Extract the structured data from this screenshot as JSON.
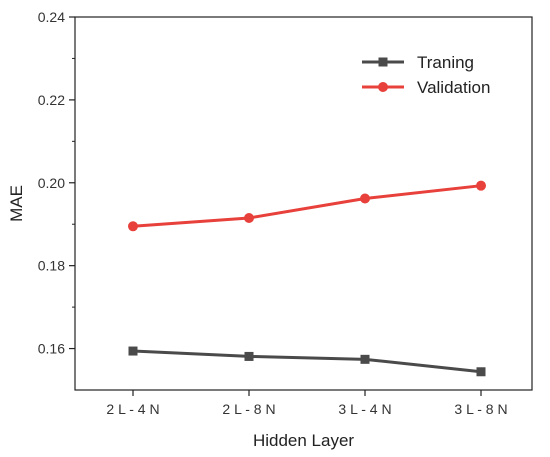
{
  "chart_data": {
    "type": "line",
    "categories": [
      "2 L - 4 N",
      "2 L - 8 N",
      "3 L - 4 N",
      "3 L - 8 N"
    ],
    "series": [
      {
        "name": "Traning",
        "values": [
          0.1594,
          0.1581,
          0.1574,
          0.1544
        ],
        "color": "#4a4a4a",
        "marker": "square"
      },
      {
        "name": "Validation",
        "values": [
          0.1895,
          0.1915,
          0.1962,
          0.1993
        ],
        "color": "#e8403a",
        "marker": "circle"
      }
    ],
    "title": "",
    "xlabel": "Hidden Layer",
    "ylabel": "MAE",
    "ylim": [
      0.15,
      0.24
    ],
    "yticks": [
      0.16,
      0.18,
      0.2,
      0.22,
      0.24
    ],
    "ytick_labels": [
      "0.16",
      "0.18",
      "0.20",
      "0.22",
      "0.24"
    ],
    "legend_position": "top-right",
    "grid": false
  }
}
